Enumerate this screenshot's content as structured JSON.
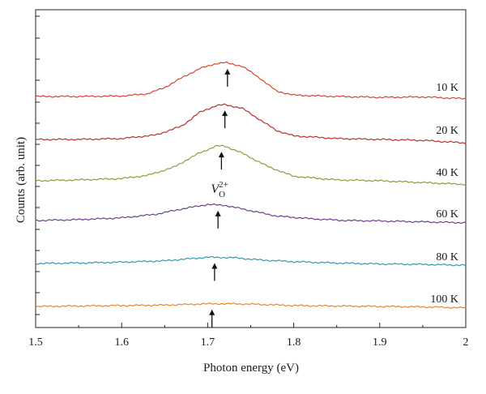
{
  "chart_data": {
    "type": "line",
    "xlabel": "Photon energy (eV)",
    "ylabel": "Counts (arb. unit)",
    "xlim": [
      1.5,
      2.0
    ],
    "xticks": [
      "1.5",
      "1.6",
      "1.7",
      "1.8",
      "1.9",
      "2"
    ],
    "grid": false,
    "y_tick_labels_shown": false,
    "annotation": {
      "base": "V",
      "subscript": "O",
      "superscript": "2+",
      "x": 1.715
    },
    "series": [
      {
        "name": "10 K",
        "color": "#d9432f",
        "peak_center": 1.72,
        "arrow_x": 1.723,
        "points": [
          [
            1.5,
            0.0
          ],
          [
            1.55,
            0.0
          ],
          [
            1.6,
            0.01
          ],
          [
            1.63,
            0.06
          ],
          [
            1.65,
            0.2
          ],
          [
            1.67,
            0.42
          ],
          [
            1.69,
            0.62
          ],
          [
            1.71,
            0.74
          ],
          [
            1.72,
            0.76
          ],
          [
            1.74,
            0.68
          ],
          [
            1.76,
            0.42
          ],
          [
            1.78,
            0.12
          ],
          [
            1.8,
            0.03
          ],
          [
            1.85,
            0.0
          ],
          [
            1.9,
            -0.02
          ],
          [
            1.95,
            -0.01
          ],
          [
            2.0,
            -0.05
          ]
        ]
      },
      {
        "name": "20 K",
        "color": "#b8302c",
        "peak_center": 1.72,
        "arrow_x": 1.72,
        "points": [
          [
            1.5,
            0.0
          ],
          [
            1.55,
            0.0
          ],
          [
            1.6,
            0.02
          ],
          [
            1.64,
            0.1
          ],
          [
            1.67,
            0.3
          ],
          [
            1.69,
            0.6
          ],
          [
            1.71,
            0.76
          ],
          [
            1.72,
            0.78
          ],
          [
            1.74,
            0.7
          ],
          [
            1.76,
            0.45
          ],
          [
            1.78,
            0.2
          ],
          [
            1.8,
            0.08
          ],
          [
            1.85,
            0.02
          ],
          [
            1.9,
            0.0
          ],
          [
            1.95,
            -0.02
          ],
          [
            2.0,
            -0.08
          ]
        ]
      },
      {
        "name": "40 K",
        "color": "#7fa33a",
        "peak_center": 1.715,
        "arrow_x": 1.716,
        "points": [
          [
            1.5,
            0.0
          ],
          [
            1.55,
            0.02
          ],
          [
            1.6,
            0.05
          ],
          [
            1.63,
            0.12
          ],
          [
            1.66,
            0.3
          ],
          [
            1.69,
            0.62
          ],
          [
            1.71,
            0.78
          ],
          [
            1.72,
            0.78
          ],
          [
            1.74,
            0.62
          ],
          [
            1.77,
            0.32
          ],
          [
            1.8,
            0.1
          ],
          [
            1.85,
            0.02
          ],
          [
            1.9,
            0.0
          ],
          [
            1.95,
            -0.04
          ],
          [
            2.0,
            -0.08
          ]
        ]
      },
      {
        "name": "60 K",
        "color": "#6b3f8f",
        "peak_center": 1.71,
        "arrow_x": 1.712,
        "points": [
          [
            1.5,
            0.0
          ],
          [
            1.55,
            0.02
          ],
          [
            1.6,
            0.06
          ],
          [
            1.64,
            0.14
          ],
          [
            1.67,
            0.26
          ],
          [
            1.7,
            0.36
          ],
          [
            1.72,
            0.34
          ],
          [
            1.75,
            0.22
          ],
          [
            1.78,
            0.1
          ],
          [
            1.82,
            0.04
          ],
          [
            1.86,
            0.0
          ],
          [
            1.9,
            -0.01
          ],
          [
            1.95,
            -0.03
          ],
          [
            2.0,
            -0.05
          ]
        ]
      },
      {
        "name": "80 K",
        "color": "#3399b5",
        "peak_center": 1.71,
        "arrow_x": 1.708,
        "points": [
          [
            1.5,
            0.0
          ],
          [
            1.55,
            0.01
          ],
          [
            1.6,
            0.03
          ],
          [
            1.65,
            0.06
          ],
          [
            1.7,
            0.14
          ],
          [
            1.73,
            0.13
          ],
          [
            1.76,
            0.08
          ],
          [
            1.8,
            0.04
          ],
          [
            1.85,
            0.01
          ],
          [
            1.9,
            -0.01
          ],
          [
            1.95,
            -0.02
          ],
          [
            2.0,
            -0.04
          ]
        ]
      },
      {
        "name": "100 K",
        "color": "#e8862e",
        "peak_center": 1.71,
        "arrow_x": 1.705,
        "points": [
          [
            1.5,
            0.0
          ],
          [
            1.55,
            0.01
          ],
          [
            1.6,
            0.02
          ],
          [
            1.65,
            0.03
          ],
          [
            1.7,
            0.06
          ],
          [
            1.73,
            0.06
          ],
          [
            1.77,
            0.04
          ],
          [
            1.8,
            0.02
          ],
          [
            1.85,
            0.01
          ],
          [
            1.9,
            0.0
          ],
          [
            1.95,
            -0.01
          ],
          [
            2.0,
            -0.03
          ]
        ]
      }
    ]
  }
}
